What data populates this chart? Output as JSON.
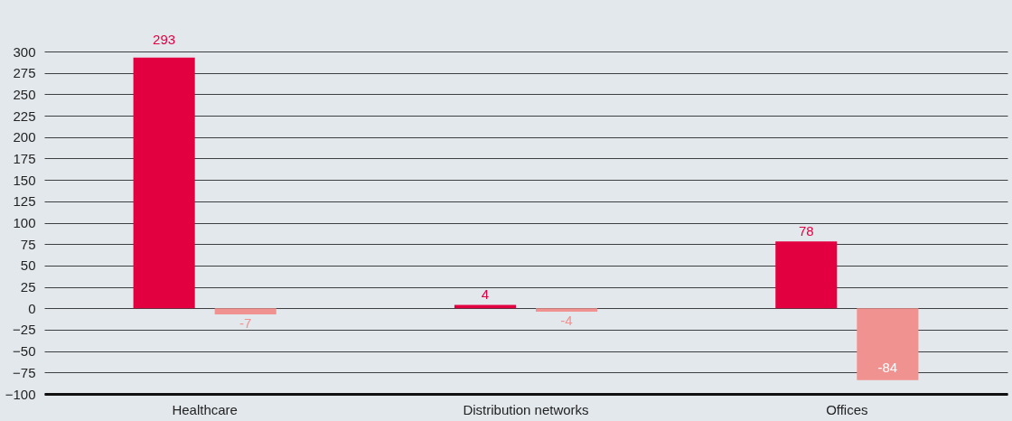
{
  "chart_data": {
    "type": "bar",
    "categories": [
      "Healthcare",
      "Distribution networks",
      "Offices"
    ],
    "series": [
      {
        "color": "#e30040",
        "values": [
          293,
          4,
          78
        ]
      },
      {
        "color": "#f0928f",
        "values": [
          -7,
          -4,
          -84
        ]
      }
    ],
    "ylim": [
      -100,
      300
    ],
    "yticks": [
      -100,
      -75,
      -50,
      -25,
      0,
      25,
      50,
      75,
      100,
      125,
      150,
      175,
      200,
      225,
      250,
      275,
      300
    ],
    "grid": "y",
    "data_labels": true
  }
}
